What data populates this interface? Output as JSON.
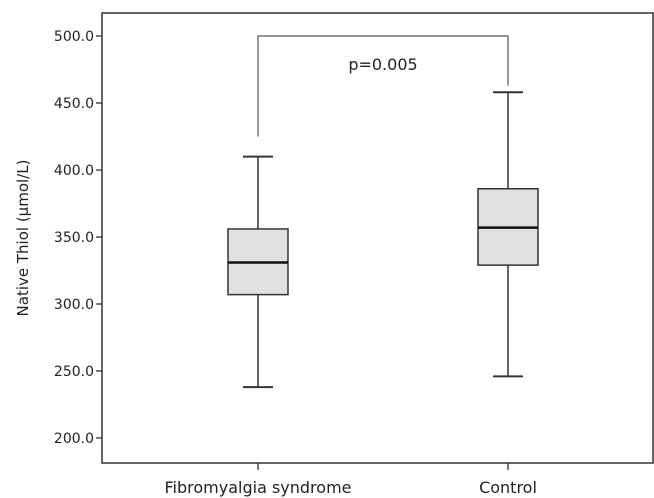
{
  "chart_data": {
    "type": "boxplot",
    "ylabel": "Native Thiol (µmol/L)",
    "xlabel": "",
    "ylim": [
      190,
      515
    ],
    "yticks": [
      200,
      250,
      300,
      350,
      400,
      450,
      500
    ],
    "ytick_labels": [
      "200.0",
      "250.0",
      "300.0",
      "350.0",
      "400.0",
      "450.0",
      "500.0"
    ],
    "categories": [
      "Fibromyalgia syndrome",
      "Control"
    ],
    "boxes": [
      {
        "category": "Fibromyalgia syndrome",
        "min": 238,
        "q1": 307,
        "median": 331,
        "q3": 356,
        "max": 410
      },
      {
        "category": "Control",
        "min": 246,
        "q1": 329,
        "median": 357,
        "q3": 386,
        "max": 458
      }
    ],
    "annotation": {
      "text": "p=0.005",
      "bracket_y": 500,
      "between": [
        "Fibromyalgia syndrome",
        "Control"
      ]
    },
    "grid": false,
    "box_fill": "#e0e0e0",
    "line_color": "#333333"
  }
}
